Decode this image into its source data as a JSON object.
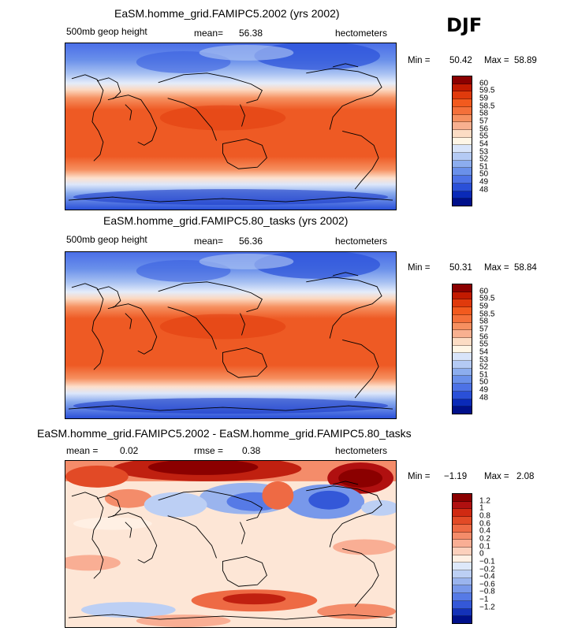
{
  "season": "DJF",
  "panels": [
    {
      "title": "EaSM.homme_grid.FAMIPC5.2002 (yrs 2002)",
      "left_label": "500mb  geop height",
      "stat1_label": "mean=",
      "stat1_value": "56.38",
      "stat2_label": "",
      "stat2_value": "",
      "units": "hectometers",
      "min_label": "Min =",
      "min_value": "50.42",
      "max_label": "Max =",
      "max_value": "58.89",
      "colorbar": {
        "labels": [
          "60",
          "59.5",
          "59",
          "58.5",
          "58",
          "57",
          "56",
          "55",
          "54",
          "53",
          "52",
          "51",
          "50",
          "49",
          "48"
        ],
        "colors": [
          "#8b0000",
          "#c21a00",
          "#e03a0c",
          "#f25a1e",
          "#f4703a",
          "#f69060",
          "#f8b090",
          "#fcdcc4",
          "#fff6e6",
          "#d8e4fa",
          "#b4caf4",
          "#8cadee",
          "#6a90ea",
          "#4d72e6",
          "#2a50d8",
          "#0a2ab8",
          "#00108a"
        ]
      }
    },
    {
      "title": "EaSM.homme_grid.FAMIPC5.80_tasks (yrs 2002)",
      "left_label": "500mb  geop height",
      "stat1_label": "mean=",
      "stat1_value": "56.36",
      "stat2_label": "",
      "stat2_value": "",
      "units": "hectometers",
      "min_label": "Min =",
      "min_value": "50.31",
      "max_label": "Max =",
      "max_value": "58.84",
      "colorbar": {
        "labels": [
          "60",
          "59.5",
          "59",
          "58.5",
          "58",
          "57",
          "56",
          "55",
          "54",
          "53",
          "52",
          "51",
          "50",
          "49",
          "48"
        ],
        "colors": [
          "#8b0000",
          "#c21a00",
          "#e03a0c",
          "#f25a1e",
          "#f4703a",
          "#f69060",
          "#f8b090",
          "#fcdcc4",
          "#fff6e6",
          "#d8e4fa",
          "#b4caf4",
          "#8cadee",
          "#6a90ea",
          "#4d72e6",
          "#2a50d8",
          "#0a2ab8",
          "#00108a"
        ]
      }
    },
    {
      "title": "EaSM.homme_grid.FAMIPC5.2002 - EaSM.homme_grid.FAMIPC5.80_tasks",
      "left_label": "",
      "stat1_label": "mean =",
      "stat1_value": "0.02",
      "stat2_label": "rmse =",
      "stat2_value": "0.38",
      "units": "hectometers",
      "min_label": "Min =",
      "min_value": "−1.19",
      "max_label": "Max =",
      "max_value": "2.08",
      "colorbar": {
        "labels": [
          "1.2",
          "1",
          "0.8",
          "0.6",
          "0.4",
          "0.2",
          "0.1",
          "0",
          "−0.1",
          "−0.2",
          "−0.4",
          "−0.6",
          "−0.8",
          "−1",
          "−1.2"
        ],
        "colors": [
          "#8b0000",
          "#b01010",
          "#d02a12",
          "#e24a26",
          "#ee6a44",
          "#f48c6a",
          "#f9ae94",
          "#fcd0bc",
          "#fff0e4",
          "#dde8fa",
          "#bccff4",
          "#9ab4ee",
          "#7898ea",
          "#567ae6",
          "#3458d8",
          "#1432b8",
          "#00108a"
        ]
      }
    }
  ]
}
